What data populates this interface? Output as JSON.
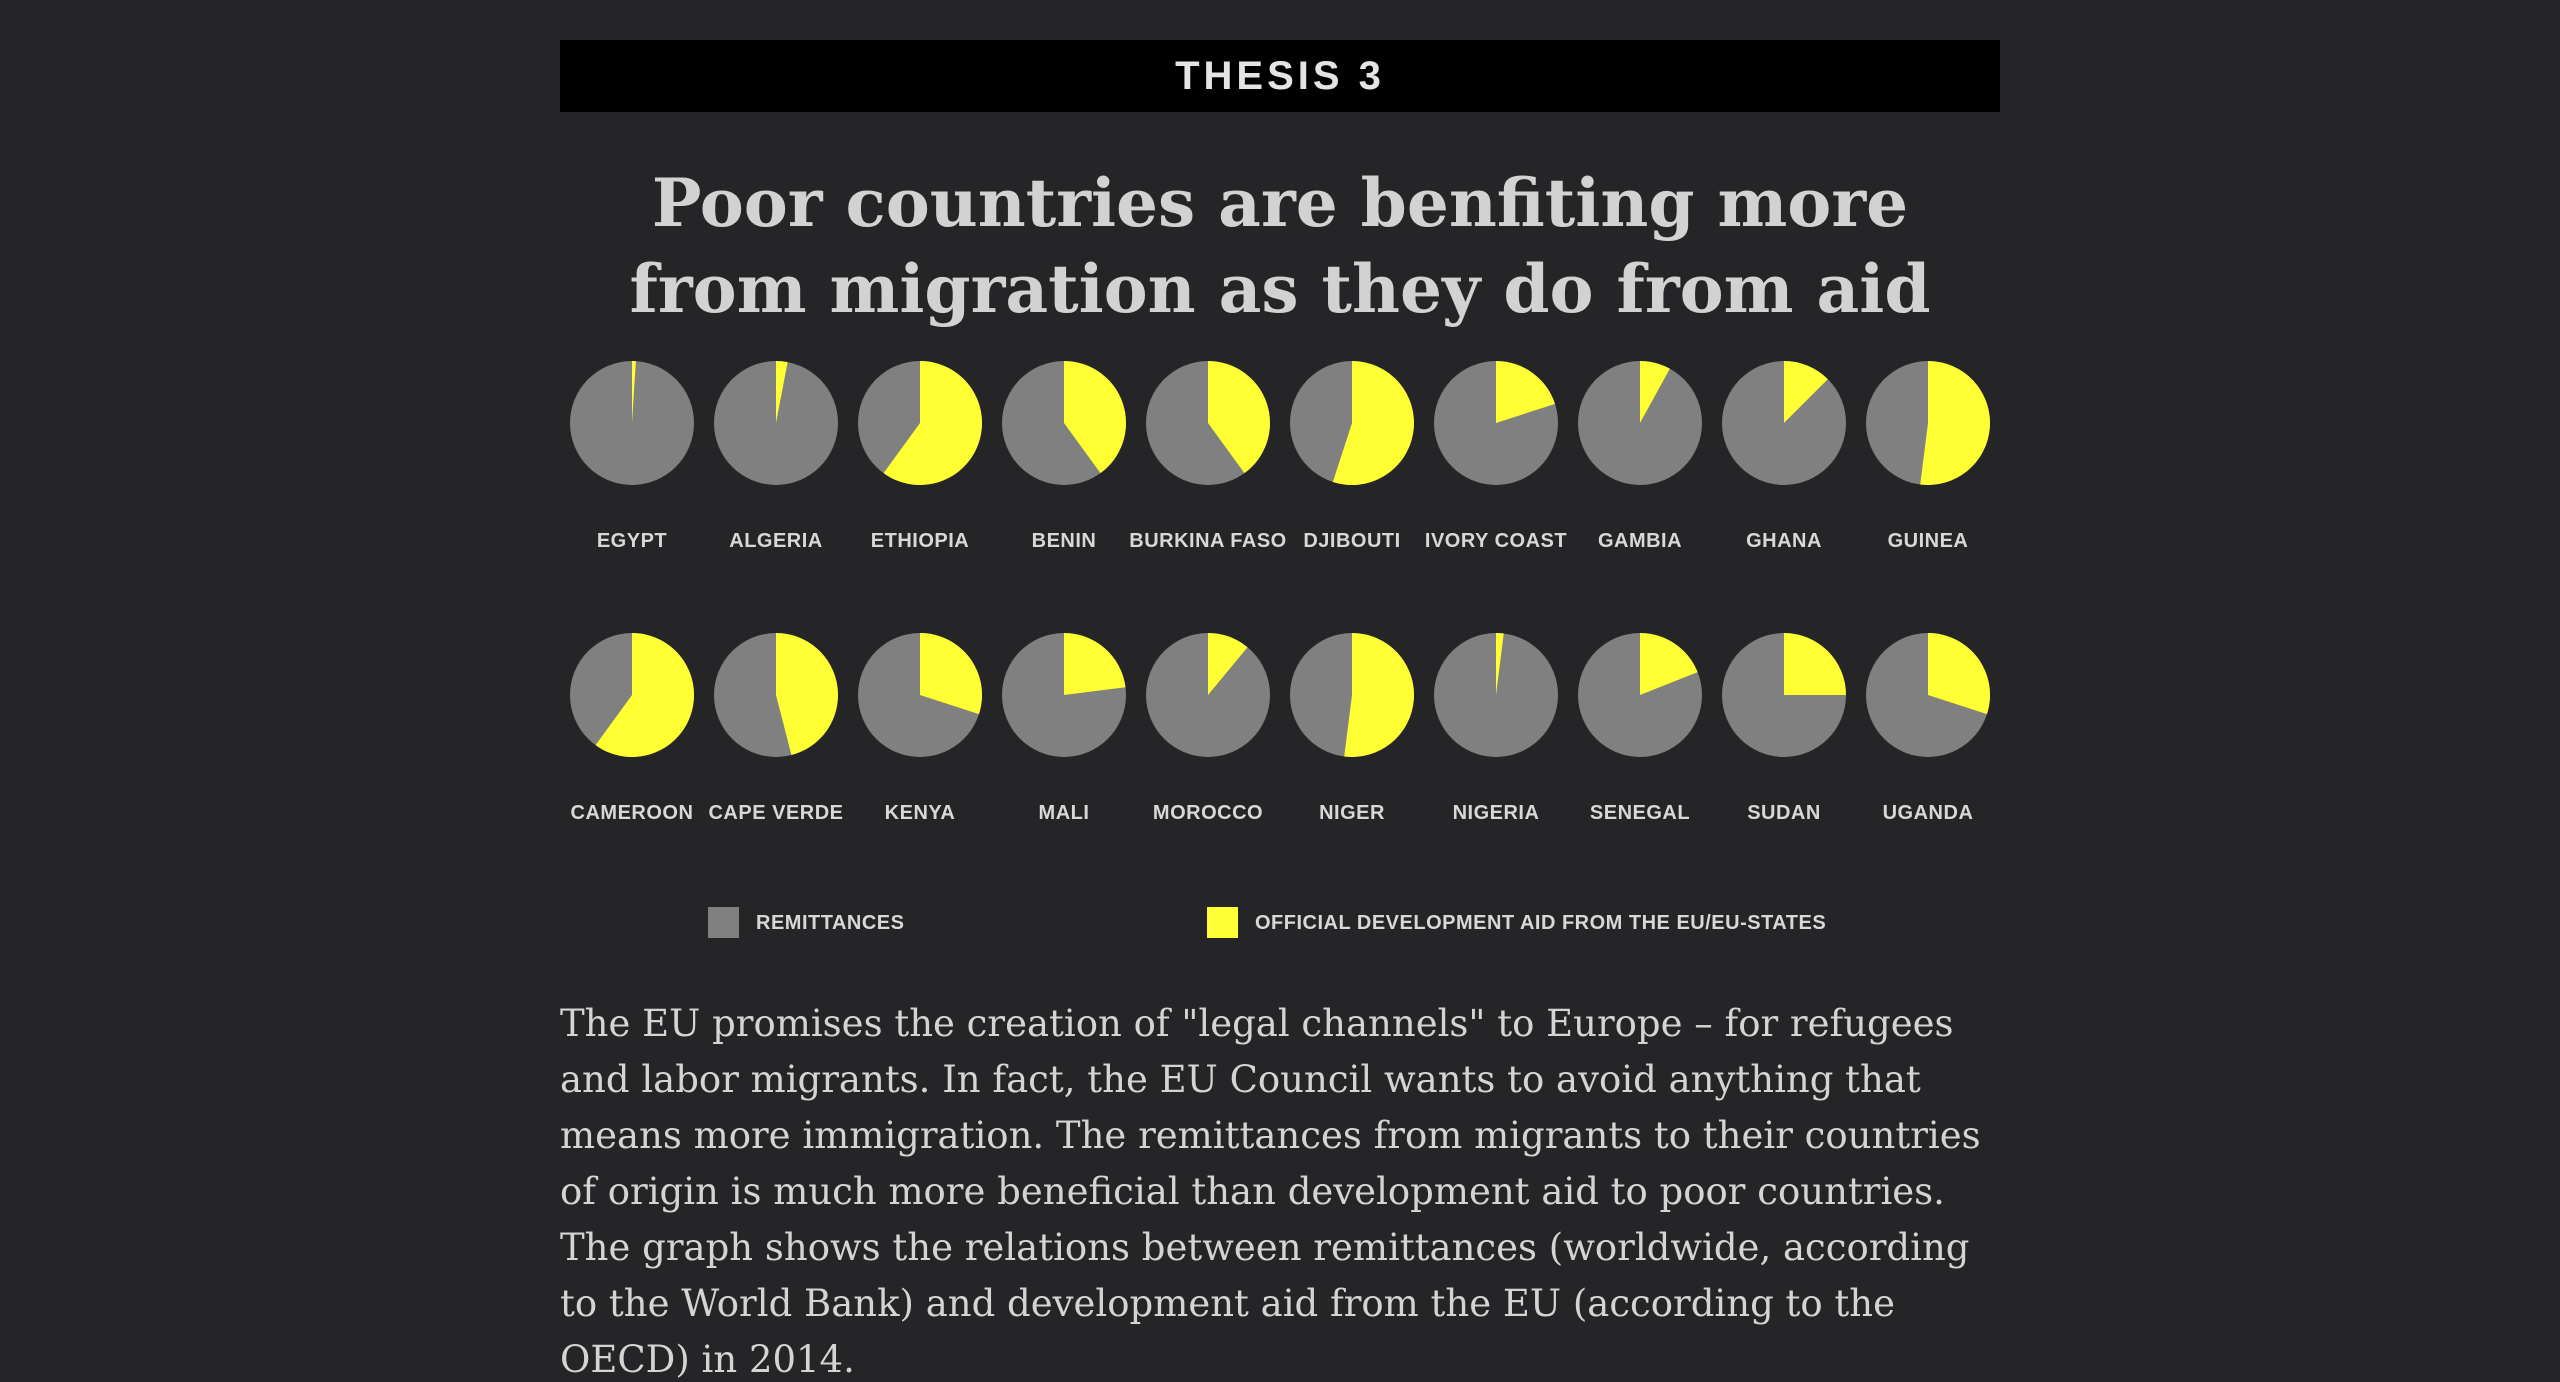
{
  "banner": {
    "label": "THESIS 3"
  },
  "headline": "Poor countries are benfiting more from migration as they do from aid",
  "body_text": "The EU promises the creation of \"legal channels\" to Europe – for refugees and labor migrants. In fact, the EU Council wants to avoid anything that means more immigration. The remittances from migrants to their countries of origin is much more beneficial than development aid to poor countries. The graph shows the relations between remittances (worldwide, according to the World Bank) and development aid from the EU (according to the OECD) in 2014.",
  "colors": {
    "background": "#252527",
    "remittances": "#808080",
    "aid": "#ffff33"
  },
  "chart_data": {
    "type": "pie",
    "title": "",
    "legend": {
      "placement": "bottom",
      "items": [
        {
          "key": "remittances",
          "label": "REMITTANCES",
          "color": "#808080"
        },
        {
          "key": "aid",
          "label": "OFFICIAL DEVELOPMENT AID FROM THE EU/EU-STATES",
          "color": "#ffff33"
        }
      ]
    },
    "unit": "share of total (remittances + EU aid), 2014",
    "pies": [
      {
        "country": "EGYPT",
        "aid_share": 0.01,
        "remittances_share": 0.99
      },
      {
        "country": "ALGERIA",
        "aid_share": 0.03,
        "remittances_share": 0.97
      },
      {
        "country": "ETHIOPIA",
        "aid_share": 0.6,
        "remittances_share": 0.4
      },
      {
        "country": "BENIN",
        "aid_share": 0.4,
        "remittances_share": 0.6
      },
      {
        "country": "BURKINA FASO",
        "aid_share": 0.4,
        "remittances_share": 0.6
      },
      {
        "country": "DJIBOUTI",
        "aid_share": 0.55,
        "remittances_share": 0.45
      },
      {
        "country": "IVORY COAST",
        "aid_share": 0.2,
        "remittances_share": 0.8
      },
      {
        "country": "GAMBIA",
        "aid_share": 0.08,
        "remittances_share": 0.92
      },
      {
        "country": "GHANA",
        "aid_share": 0.125,
        "remittances_share": 0.875
      },
      {
        "country": "GUINEA",
        "aid_share": 0.52,
        "remittances_share": 0.48
      },
      {
        "country": "CAMEROON",
        "aid_share": 0.6,
        "remittances_share": 0.4
      },
      {
        "country": "CAPE VERDE",
        "aid_share": 0.46,
        "remittances_share": 0.54
      },
      {
        "country": "KENYA",
        "aid_share": 0.3,
        "remittances_share": 0.7
      },
      {
        "country": "MALI",
        "aid_share": 0.23,
        "remittances_share": 0.77
      },
      {
        "country": "MOROCCO",
        "aid_share": 0.11,
        "remittances_share": 0.89
      },
      {
        "country": "NIGER",
        "aid_share": 0.52,
        "remittances_share": 0.48
      },
      {
        "country": "NIGERIA",
        "aid_share": 0.02,
        "remittances_share": 0.98
      },
      {
        "country": "SENEGAL",
        "aid_share": 0.19,
        "remittances_share": 0.81
      },
      {
        "country": "SUDAN",
        "aid_share": 0.25,
        "remittances_share": 0.75
      },
      {
        "country": "UGANDA",
        "aid_share": 0.3,
        "remittances_share": 0.7
      }
    ]
  }
}
